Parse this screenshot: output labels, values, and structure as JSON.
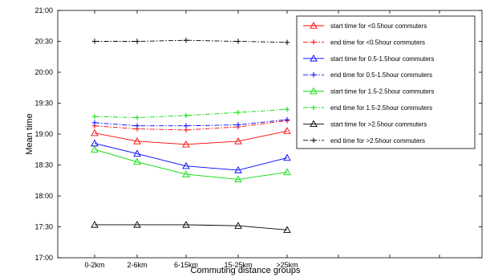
{
  "chart_data": {
    "type": "line",
    "title": "",
    "xlabel": "Commuting distance groups",
    "ylabel": "Mean time",
    "categories": [
      "0-2km",
      "2-6km",
      "6-15km",
      "15-25km",
      ">25km"
    ],
    "y_ticks": [
      "17:00",
      "17:30",
      "18:00",
      "18:30",
      "19:00",
      "19:30",
      "20:00",
      "20:30",
      "21:00"
    ],
    "ylim_minutes": [
      1020,
      1260
    ],
    "grid": false,
    "legend_position": "top-right",
    "series": [
      {
        "name": "start time for <0.5hour commuters",
        "color": "#ff0000",
        "dash": "solid",
        "marker": "triangle",
        "values": [
          "19:01",
          "18:53",
          "18:50",
          "18:53",
          "19:03"
        ]
      },
      {
        "name": "end time for <0.5hour commuters",
        "color": "#ff0000",
        "dash": "dashdot",
        "marker": "plus",
        "values": [
          "19:08",
          "19:05",
          "19:04",
          "19:07",
          "19:13"
        ]
      },
      {
        "name": "start time for 0.5-1.5hour commuters",
        "color": "#0000ff",
        "dash": "solid",
        "marker": "triangle",
        "values": [
          "18:51",
          "18:41",
          "18:29",
          "18:25",
          "18:37"
        ]
      },
      {
        "name": "end time for 0.5-1.5hour commuters",
        "color": "#0000ff",
        "dash": "dashdot",
        "marker": "plus",
        "values": [
          "19:11",
          "19:08",
          "19:08",
          "19:09",
          "19:14"
        ]
      },
      {
        "name": "start time for 1.5-2.5hour commuters",
        "color": "#00dd00",
        "dash": "solid",
        "marker": "triangle",
        "values": [
          "18:45",
          "18:33",
          "18:21",
          "18:16",
          "18:23"
        ]
      },
      {
        "name": "end time for 1.5-2.5hour commuters",
        "color": "#00dd00",
        "dash": "dashdot",
        "marker": "plus",
        "values": [
          "19:17",
          "19:16",
          "19:18",
          "19:21",
          "19:24"
        ]
      },
      {
        "name": "start time for >2.5hour commuters",
        "color": "#000000",
        "dash": "solid",
        "marker": "triangle",
        "values": [
          "17:32",
          "17:32",
          "17:32",
          "17:31",
          "17:27"
        ]
      },
      {
        "name": "end time for >2.5hour commuters",
        "color": "#000000",
        "dash": "dashdot",
        "marker": "plus",
        "values": [
          "20:30",
          "20:30",
          "20:31",
          "20:30",
          "20:29"
        ]
      }
    ]
  }
}
